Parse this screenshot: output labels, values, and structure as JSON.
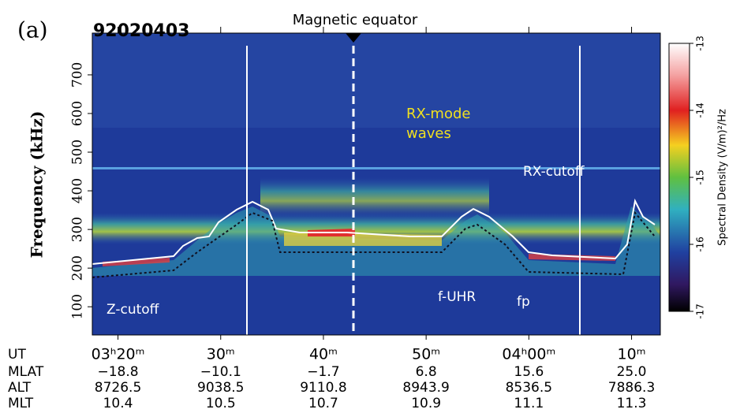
{
  "chart_data": {
    "type": "spectrogram",
    "panel_label": "(a)",
    "title": "92020403",
    "ylabel": "Frequency (kHz)",
    "ylim": [
      27,
      808
    ],
    "yticks": [
      100,
      200,
      300,
      400,
      500,
      600,
      700
    ],
    "xlim": [
      17.5,
      72.8
    ],
    "xticks": [
      {
        "value": 20,
        "label": "03ʰ20ᵐ"
      },
      {
        "value": 30,
        "label": "30ᵐ"
      },
      {
        "value": 40,
        "label": "40ᵐ"
      },
      {
        "value": 50,
        "label": "50ᵐ"
      },
      {
        "value": 60,
        "label": "04ʰ00ᵐ"
      },
      {
        "value": 70,
        "label": "10ᵐ"
      }
    ],
    "x_row_label": "UT",
    "orbit_rows": [
      {
        "name": "MLAT",
        "values": [
          "−18.8",
          "−10.1",
          "−1.7",
          "6.8",
          "15.6",
          "25.0"
        ]
      },
      {
        "name": "ALT",
        "values": [
          "8726.5",
          "9038.5",
          "9110.8",
          "8943.9",
          "8536.5",
          "7886.3"
        ]
      },
      {
        "name": "MLT",
        "values": [
          "10.4",
          "10.5",
          "10.7",
          "10.9",
          "11.1",
          "11.3"
        ]
      }
    ],
    "colorbar": {
      "label": "Spectral Density (V/m)²/Hz",
      "lim": [
        -17,
        -13
      ],
      "ticks": [
        -13,
        -14,
        -15,
        -16,
        -17
      ]
    },
    "annotations": {
      "magnetic_equator": "Magnetic equator",
      "rx_mode": [
        "RX-mode",
        "waves"
      ],
      "rx_cutoff": "RX-cutoff",
      "z_cutoff": "Z-cutoff",
      "f_uhr": "f-UHR",
      "fp": "fp"
    }
  }
}
